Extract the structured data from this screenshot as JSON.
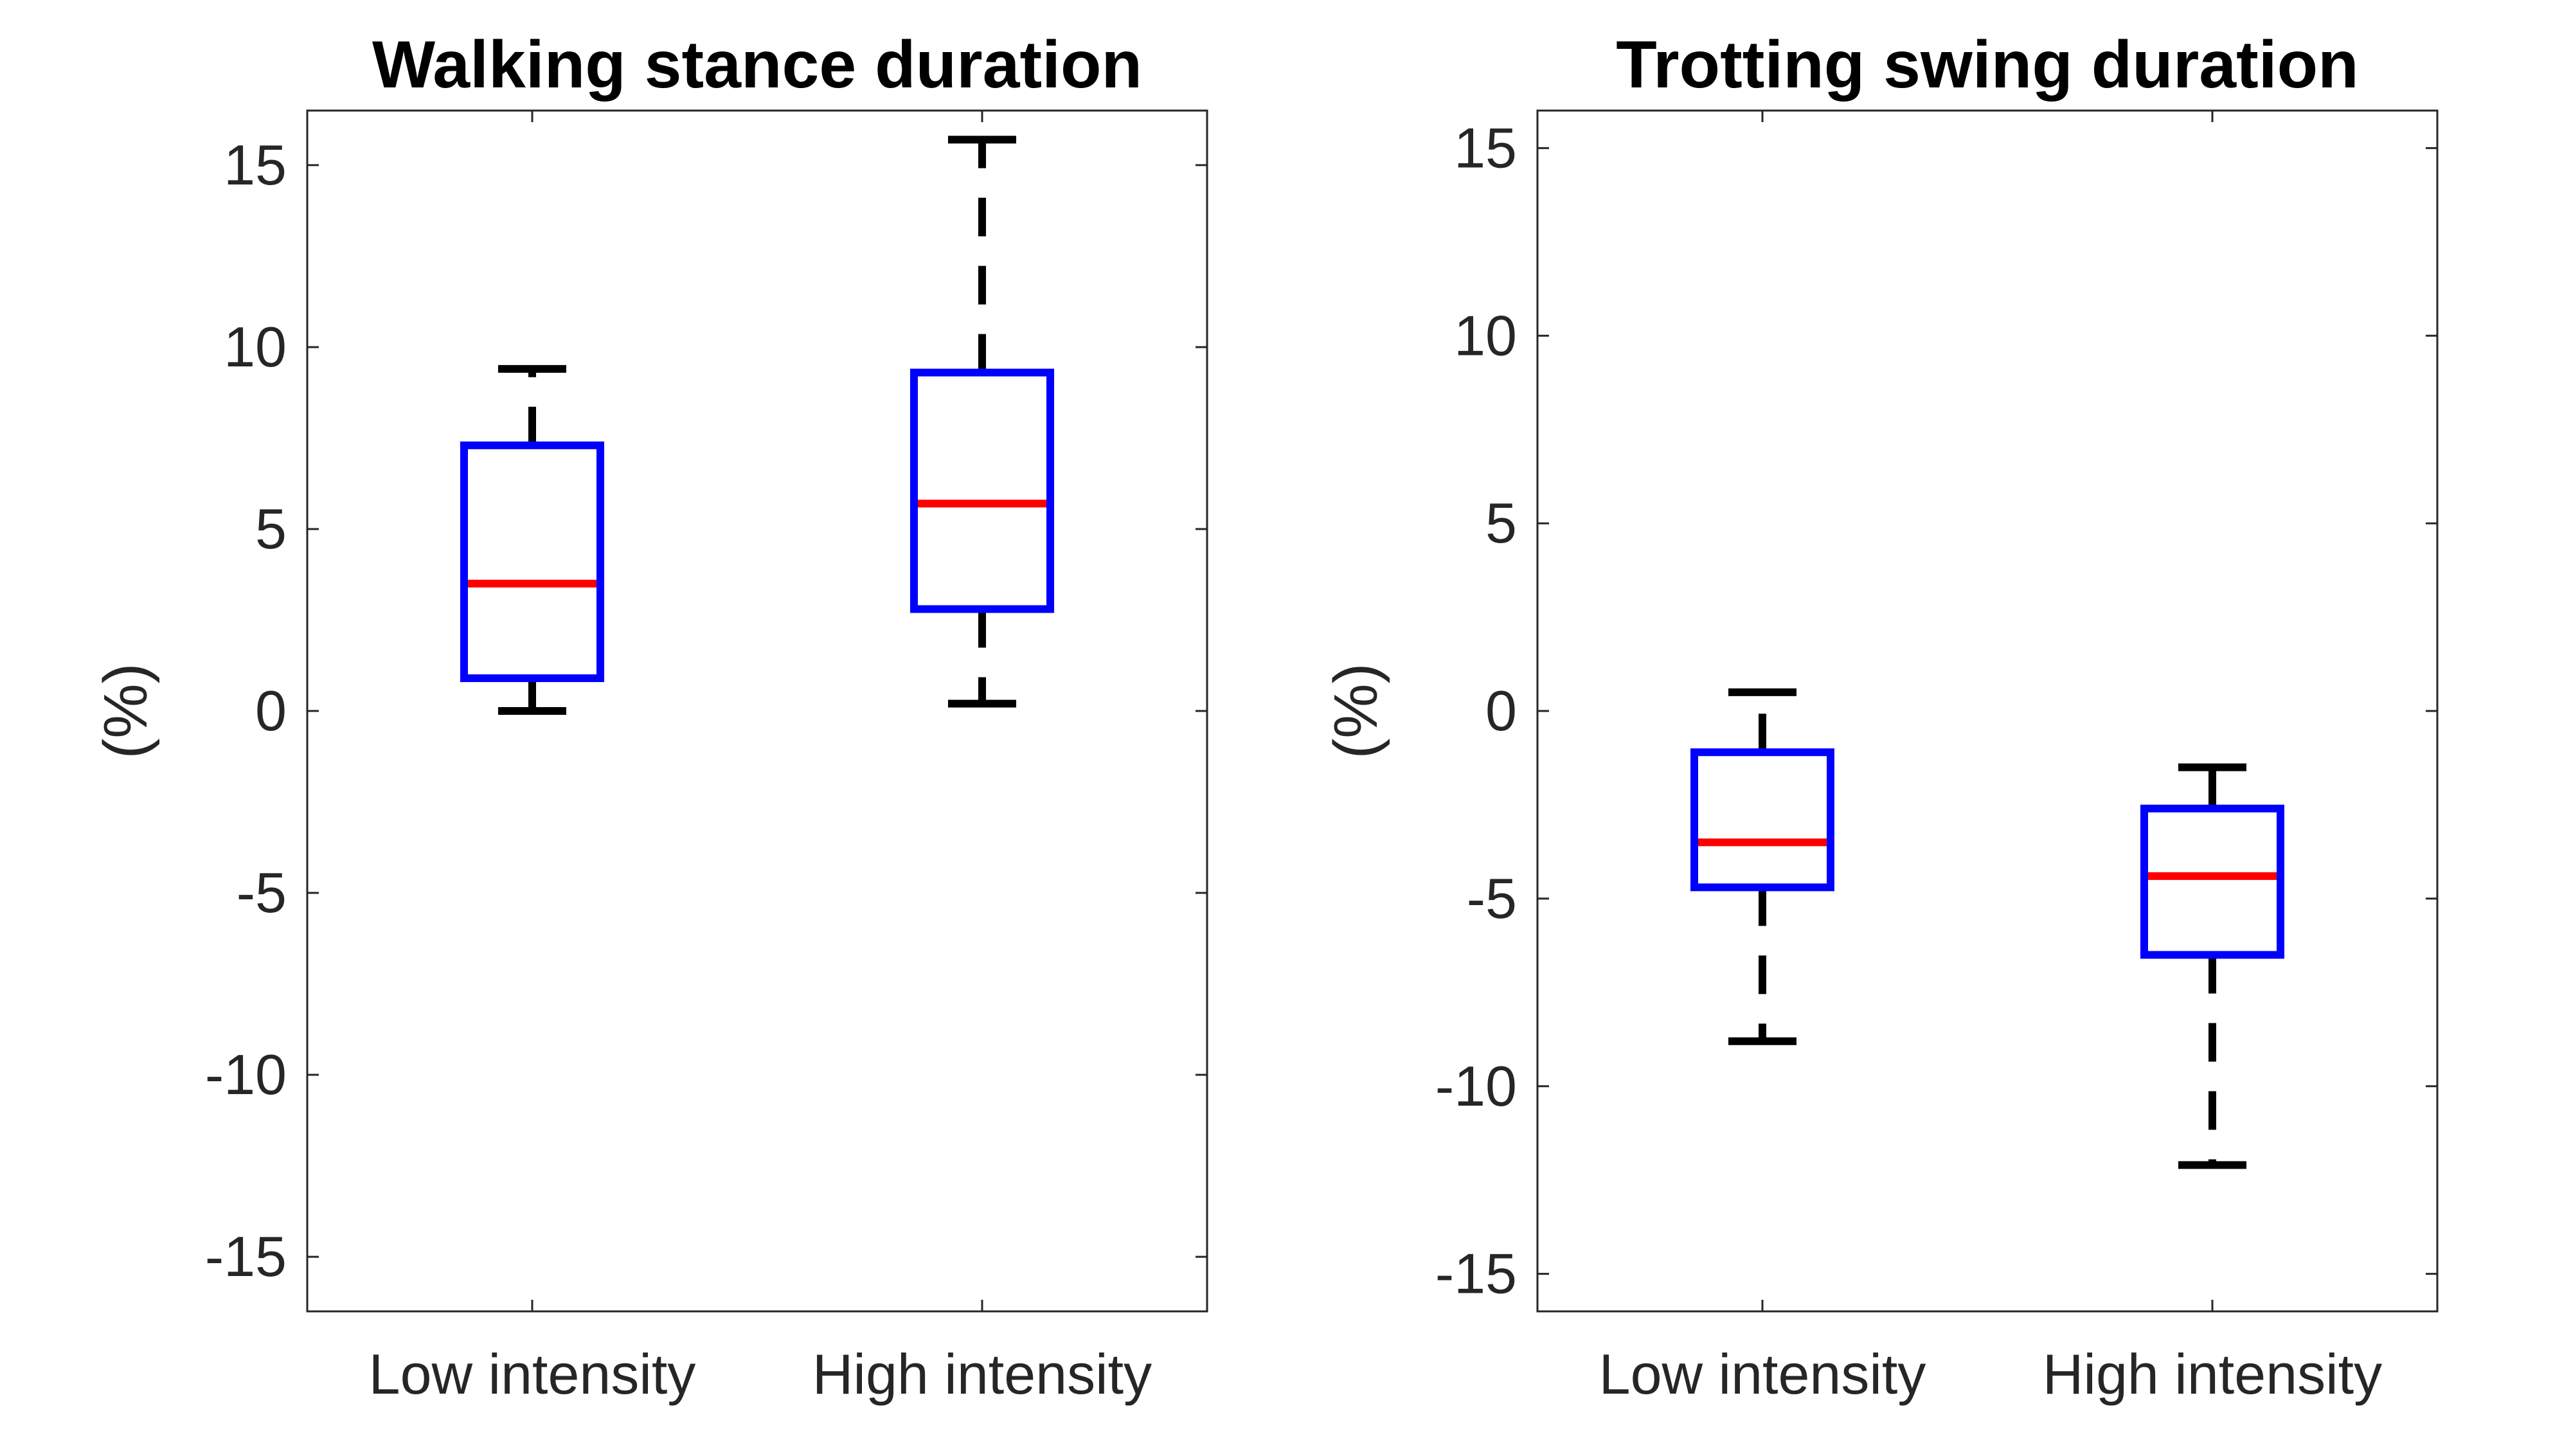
{
  "chart_data": [
    {
      "type": "box",
      "title": "Walking stance duration",
      "ylabel": "(%)",
      "ylim": [
        -16.5,
        16.5
      ],
      "yticks": [
        15,
        10,
        5,
        0,
        -5,
        -10,
        -15
      ],
      "categories": [
        "Low intensity",
        "High intensity"
      ],
      "boxes": [
        {
          "category": "Low intensity",
          "min": 0.0,
          "q1": 0.9,
          "median": 3.5,
          "q3": 7.3,
          "max": 9.4
        },
        {
          "category": "High intensity",
          "min": 0.2,
          "q1": 2.8,
          "median": 5.7,
          "q3": 9.3,
          "max": 15.7
        }
      ],
      "colors": {
        "box": "#0000ff",
        "median": "#ff0000",
        "whisker": "#000000"
      }
    },
    {
      "type": "box",
      "title": "Trotting swing duration",
      "ylabel": "(%)",
      "ylim": [
        -16,
        16
      ],
      "yticks": [
        15,
        10,
        5,
        0,
        -5,
        -10,
        -15
      ],
      "categories": [
        "Low intensity",
        "High intensity"
      ],
      "boxes": [
        {
          "category": "Low intensity",
          "min": -8.8,
          "q1": -4.7,
          "median": -3.5,
          "q3": -1.1,
          "max": 0.5
        },
        {
          "category": "High intensity",
          "min": -12.1,
          "q1": -6.5,
          "median": -4.4,
          "q3": -2.6,
          "max": -1.5
        }
      ],
      "colors": {
        "box": "#0000ff",
        "median": "#ff0000",
        "whisker": "#000000"
      }
    }
  ]
}
